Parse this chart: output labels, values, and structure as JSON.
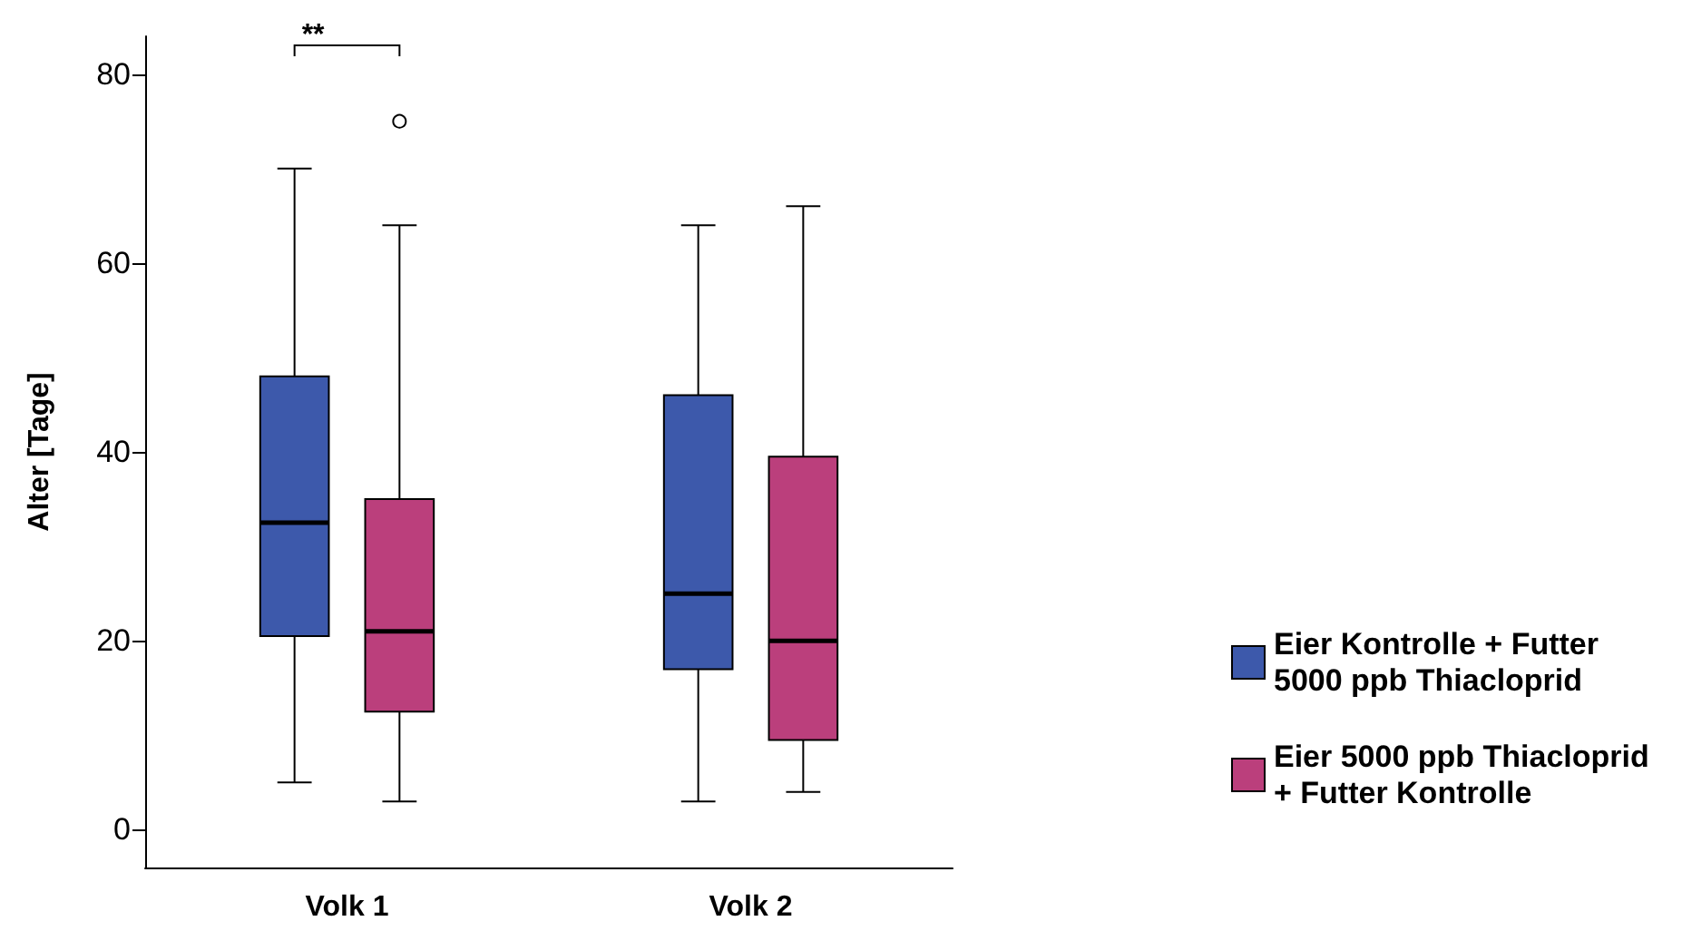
{
  "chart_data": {
    "type": "box",
    "ylabel": "Alter [Tage]",
    "categories": [
      "Volk 1",
      "Volk 2"
    ],
    "series": [
      {
        "name": "Eier Kontrolle + Futter 5000 ppb Thiacloprid",
        "color": "#3d59ab",
        "boxes": [
          {
            "low": 5,
            "q1": 20.5,
            "median": 32.5,
            "q3": 48,
            "high": 70
          },
          {
            "low": 3,
            "q1": 17,
            "median": 25,
            "q3": 46,
            "high": 64
          }
        ]
      },
      {
        "name": "Eier 5000 ppb Thiacloprid + Futter Kontrolle",
        "color": "#bb3f7c",
        "boxes": [
          {
            "low": 3,
            "q1": 12.5,
            "median": 21,
            "q3": 35,
            "high": 64,
            "outliers": [
              75
            ]
          },
          {
            "low": 4,
            "q1": 9.5,
            "median": 20,
            "q3": 39.5,
            "high": 66
          }
        ]
      }
    ],
    "ylim": [
      -4,
      84
    ],
    "yticks": [
      0,
      20,
      40,
      60,
      80
    ],
    "grid": false,
    "legend": "right",
    "annotations": [
      "**"
    ]
  }
}
